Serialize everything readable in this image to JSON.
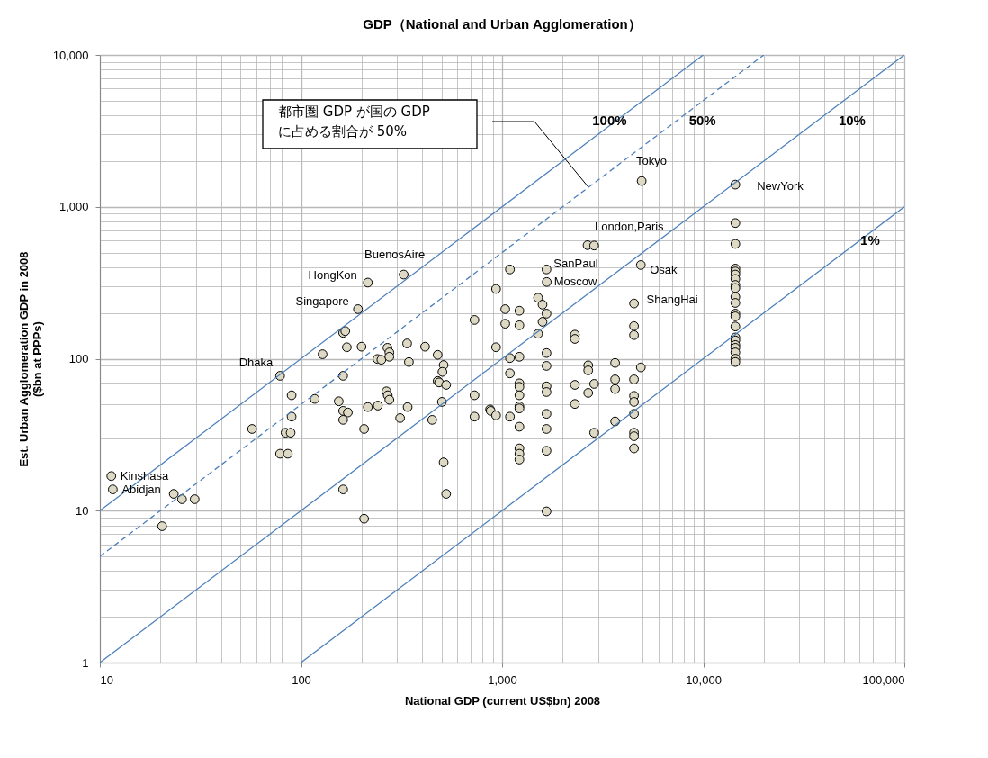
{
  "chart_data": {
    "type": "scatter",
    "title": "GDP（National and Urban Agglomeration）",
    "xlabel": "National GDP  (current US$bn) 2008",
    "ylabel": "Est. Urban Agglomeration GDP  in 2008\n($bn at PPPs)",
    "log": "xy",
    "grid": true,
    "xlim": [
      10,
      100000
    ],
    "xticks": [
      10,
      100,
      {
        "value": 1000,
        "label": "1,000"
      },
      {
        "value": 10000,
        "label": "10,000"
      },
      {
        "value": 100000,
        "label": "100,000"
      }
    ],
    "ylim": [
      1,
      10000
    ],
    "yticks": [
      1,
      10,
      100,
      {
        "value": 1000,
        "label": "1,000"
      },
      {
        "value": 10000,
        "label": "10,000"
      }
    ],
    "series": [
      {
        "color": "#ddd9c4",
        "marker": "circle",
        "x": [
          11.4,
          11.6,
          23.3,
          25.6,
          29.6,
          20.4,
          78.7,
          57.1,
          89.8,
          89.8,
          83.8,
          88.8,
          78.7,
          86.0,
          128,
          117,
          162,
          166,
          169,
          200,
          192,
          215,
          324,
          162,
          154,
          162,
          171,
          162,
          162,
          206,
          206,
          215,
          241,
          311,
          339,
          240,
          251,
          269,
          275,
          275,
          266,
          270,
          275,
          337,
          344,
          414,
          478,
          512,
          505,
          478,
          486,
          527,
          502,
          449,
          512,
          527,
          729,
          729,
          729,
          933,
          933,
          871,
          877,
          933,
          1094,
          1037,
          1219,
          1037,
          1219,
          1094,
          1219,
          1094,
          1094,
          1219,
          1219,
          1219,
          1219,
          1219,
          1219,
          1219,
          1219,
          1219,
          1510,
          1589,
          1663,
          1589,
          1510,
          1663,
          1668,
          1663,
          1663,
          1663,
          1663,
          1663,
          1663,
          1663,
          1663,
          2661,
          2870,
          2302,
          2302,
          2302,
          2302,
          2681,
          2681,
          2870,
          2681,
          2870,
          3648,
          3648,
          3648,
          3648,
          4529,
          4529,
          4529,
          4529,
          4529,
          4529,
          4529,
          4529,
          4529,
          4529,
          4898,
          4898,
          4943,
          14450,
          14450,
          14450,
          14450,
          14450,
          14450,
          14450,
          14450,
          14450,
          14450,
          14450,
          14450,
          14450,
          14450,
          14450,
          14450,
          14450,
          14450,
          14450,
          14450,
          14450
        ],
        "values": [
          16.9,
          13.8,
          12.9,
          11.9,
          11.9,
          7.9,
          77.2,
          34.5,
          57.5,
          41.6,
          32.6,
          32.6,
          23.7,
          23.7,
          107,
          54.4,
          148,
          152,
          119,
          120,
          212,
          317,
          358,
          77.2,
          52.5,
          45.4,
          44.3,
          39.6,
          13.8,
          34.5,
          8.85,
          48.1,
          49.2,
          40.7,
          48.1,
          99.6,
          98.4,
          118,
          110,
          103,
          61.0,
          57.5,
          53.7,
          126,
          95.1,
          120,
          106,
          90.9,
          81.9,
          71.4,
          69.8,
          67.3,
          52.0,
          39.6,
          20.8,
          12.9,
          180,
          57.5,
          41.6,
          288,
          119,
          46.4,
          45.4,
          42.4,
          387,
          212,
          207,
          170,
          166,
          101,
          103,
          80.1,
          41.6,
          68.9,
          65.3,
          57.5,
          48.6,
          47.1,
          35.7,
          25.7,
          23.7,
          21.7,
          252,
          227,
          198,
          175,
          146,
          387,
          320,
          109,
          89.7,
          65.8,
          60.4,
          43.4,
          34.5,
          24.8,
          9.9,
          559,
          556,
          144,
          135,
          67.3,
          50.4,
          90.5,
          83.8,
          68.3,
          59.6,
          32.6,
          93.8,
          73.1,
          63.2,
          38.7,
          231,
          164,
          143,
          73.1,
          57.0,
          52.0,
          43.4,
          32.6,
          30.9,
          25.7,
          414,
          87.7,
          1479,
          1400,
          782,
          570,
          392,
          375,
          358,
          335,
          306,
          292,
          255,
          233,
          198,
          190,
          163,
          138,
          132,
          123,
          118,
          110,
          100,
          95.1
        ]
      },
      {
        "type": "line",
        "name": "100%",
        "color": "#4a7ebb",
        "line_style": "solid",
        "x": [
          10,
          10000
        ],
        "values": [
          10,
          10000
        ]
      },
      {
        "type": "line",
        "name": "50%",
        "color": "#4a7ebb",
        "line_style": "dashed",
        "x": [
          10,
          20000
        ],
        "values": [
          5,
          10000
        ]
      },
      {
        "type": "line",
        "name": "10%",
        "color": "#4a7ebb",
        "line_style": "solid",
        "x": [
          10,
          100000
        ],
        "values": [
          1,
          10000
        ]
      },
      {
        "type": "line",
        "name": "1%",
        "color": "#4a7ebb",
        "line_style": "solid",
        "x": [
          100,
          100000
        ],
        "values": [
          1,
          1000
        ]
      }
    ],
    "annotations": [
      {
        "text": "Kinshasa",
        "x": 11.4,
        "y": 16.9
      },
      {
        "text": "Abidjan",
        "x": 11.6,
        "y": 13.8
      },
      {
        "text": "Dhaka",
        "x": 78.7,
        "y": 77.2
      },
      {
        "text": "HongKon",
        "x": 215,
        "y": 317
      },
      {
        "text": "Singapore",
        "x": 192,
        "y": 212
      },
      {
        "text": "BuenosAire",
        "x": 324,
        "y": 358
      },
      {
        "text": "SanPaul",
        "x": 1663,
        "y": 387
      },
      {
        "text": "Moscow",
        "x": 1668,
        "y": 320
      },
      {
        "text": "London,Paris",
        "x": 2661,
        "y": 559
      },
      {
        "text": "Tokyo",
        "x": 4943,
        "y": 1479
      },
      {
        "text": "Osak",
        "x": 4898,
        "y": 414
      },
      {
        "text": "ShangHai",
        "x": 4529,
        "y": 231
      },
      {
        "text": "NewYork",
        "x": 14450,
        "y": 1400
      },
      "都市圏 GDP が国の GDP\nに占める割合が 50%"
    ]
  }
}
